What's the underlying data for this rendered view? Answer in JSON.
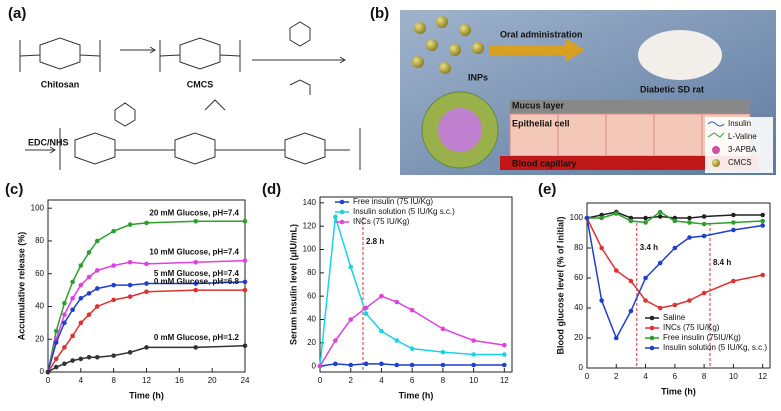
{
  "panels": {
    "a": {
      "label": "(a)",
      "texts": [
        "Chitosan",
        "CMCS",
        "EDC/NHS"
      ]
    },
    "b": {
      "label": "(b)",
      "texts": [
        "Oral administration",
        "INPs",
        "Diabetic SD rat",
        "Mucus layer",
        "Epithelial cell",
        "Blood capillary"
      ],
      "legend": [
        "Insulin",
        "L-Valine",
        "3-APBA",
        "CMCS"
      ]
    }
  },
  "chart_data": [
    {
      "type": "line",
      "label": "(c)",
      "x_label": "Time (h)",
      "y_label": "Accumulative release (%)",
      "x": [
        0,
        1,
        2,
        3,
        4,
        5,
        6,
        8,
        10,
        12,
        18,
        24
      ],
      "xlim": [
        0,
        24
      ],
      "xticks": [
        0,
        4,
        8,
        12,
        16,
        20,
        24
      ],
      "ylim": [
        0,
        105
      ],
      "yticks": [
        0,
        20,
        40,
        60,
        80,
        100
      ],
      "series": [
        {
          "name": "20 mM Glucose, pH=7.4",
          "color": "#2ca02c",
          "values": [
            0,
            25,
            42,
            55,
            65,
            73,
            80,
            86,
            90,
            91,
            92,
            92
          ]
        },
        {
          "name": "10 mM Glucose, pH=7.4",
          "color": "#e040e0",
          "values": [
            0,
            20,
            35,
            45,
            53,
            58,
            62,
            65,
            67,
            66,
            67,
            68
          ]
        },
        {
          "name": "5 mM Glucose, pH=7.4",
          "color": "#1f3fd0",
          "values": [
            0,
            18,
            30,
            38,
            45,
            48,
            51,
            53,
            53,
            54,
            54,
            55
          ]
        },
        {
          "name": "0 mM Glucose, pH=6.8",
          "color": "#e03030",
          "values": [
            0,
            8,
            15,
            22,
            30,
            35,
            40,
            44,
            46,
            49,
            50,
            50
          ]
        },
        {
          "name": "0 mM Glucose, pH=1.2",
          "color": "#333333",
          "values": [
            0,
            3,
            5,
            7,
            8,
            9,
            9,
            10,
            12,
            15,
            15,
            16
          ]
        }
      ]
    },
    {
      "type": "line",
      "label": "(d)",
      "x_label": "Time (h)",
      "y_label": "Serum insulin level (μIU/mL)",
      "x": [
        0,
        1,
        2,
        3,
        4,
        5,
        6,
        8,
        10,
        12
      ],
      "xlim": [
        0,
        12.5
      ],
      "xticks": [
        0,
        2,
        4,
        6,
        8,
        10,
        12
      ],
      "ylim": [
        -5,
        145
      ],
      "yticks": [
        0,
        20,
        40,
        60,
        80,
        100,
        120,
        140
      ],
      "annotations": [
        {
          "text": "2.8 h",
          "x": 2.8
        }
      ],
      "series": [
        {
          "name": "Free insulin (75 IU/Kg)",
          "color": "#1f3fd0",
          "values": [
            0,
            2,
            1,
            2,
            2,
            1,
            1,
            1,
            1,
            1
          ]
        },
        {
          "name": "Insulin solution (5 IU/Kg s.c.)",
          "color": "#19d3e6",
          "values": [
            0,
            128,
            85,
            45,
            30,
            22,
            15,
            12,
            10,
            10
          ]
        },
        {
          "name": "INCs (75 IU/Kg)",
          "color": "#e040e0",
          "values": [
            0,
            22,
            40,
            50,
            60,
            55,
            48,
            32,
            22,
            18
          ]
        }
      ]
    },
    {
      "type": "line",
      "label": "(e)",
      "x_label": "Time (h)",
      "y_label": "Blood glucose level (% of initial)",
      "x": [
        0,
        1,
        2,
        3,
        4,
        5,
        6,
        7,
        8,
        10,
        12
      ],
      "xlim": [
        0,
        12.5
      ],
      "xticks": [
        0,
        2,
        4,
        6,
        8,
        10,
        12
      ],
      "ylim": [
        0,
        110
      ],
      "yticks": [
        0,
        20,
        40,
        60,
        80,
        100
      ],
      "annotations": [
        {
          "text": "3.4 h",
          "x": 3.4
        },
        {
          "text": "8.4 h",
          "x": 8.4
        }
      ],
      "series": [
        {
          "name": "Saline",
          "color": "#222222",
          "values": [
            100,
            102,
            104,
            100,
            100,
            101,
            100,
            100,
            101,
            102,
            102
          ]
        },
        {
          "name": "INCs (75 IU/Kg)",
          "color": "#e03030",
          "values": [
            100,
            80,
            65,
            58,
            45,
            40,
            42,
            45,
            50,
            58,
            62
          ]
        },
        {
          "name": "Free insulin (75IU/Kg)",
          "color": "#2ca02c",
          "values": [
            100,
            100,
            103,
            98,
            97,
            104,
            98,
            97,
            96,
            97,
            98
          ]
        },
        {
          "name": "Insulin solution (5 IU/Kg, s.c.)",
          "color": "#1f3fd0",
          "values": [
            100,
            45,
            20,
            38,
            60,
            70,
            80,
            87,
            88,
            92,
            95
          ]
        }
      ]
    }
  ]
}
